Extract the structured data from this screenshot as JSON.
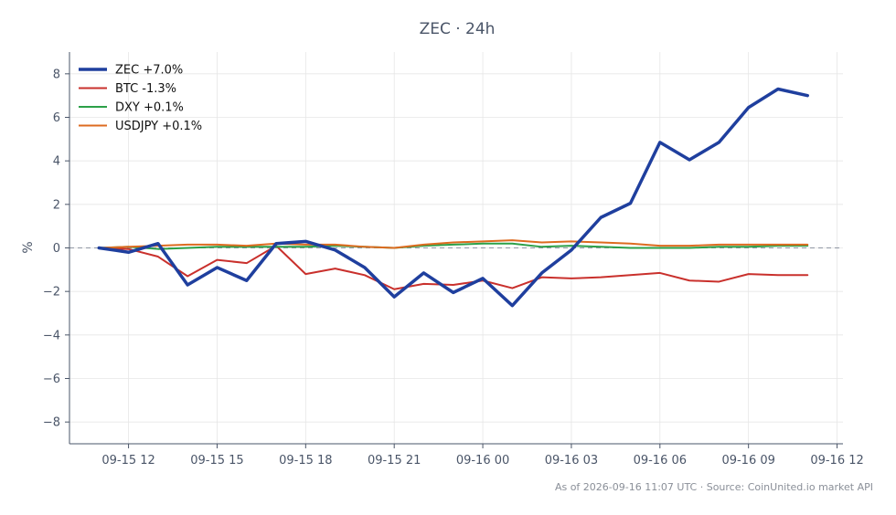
{
  "chart_data": {
    "type": "line",
    "title": "ZEC · 24h",
    "xlabel": "",
    "ylabel": "%",
    "ylim": [
      -9,
      9
    ],
    "yticks": [
      -8,
      -6,
      -4,
      -2,
      0,
      2,
      4,
      6,
      8
    ],
    "ytick_labels": [
      "−8",
      "−6",
      "−4",
      "−2",
      "0",
      "2",
      "4",
      "6",
      "8"
    ],
    "x": [
      "09-15 11:00",
      "09-15 12:00",
      "09-15 13:00",
      "09-15 14:00",
      "09-15 15:00",
      "09-15 16:00",
      "09-15 17:00",
      "09-15 18:00",
      "09-15 19:00",
      "09-15 20:00",
      "09-15 21:00",
      "09-15 22:00",
      "09-15 23:00",
      "09-16 00:00",
      "09-16 01:00",
      "09-16 02:00",
      "09-16 03:00",
      "09-16 04:00",
      "09-16 05:00",
      "09-16 06:00",
      "09-16 07:00",
      "09-16 08:00",
      "09-16 09:00",
      "09-16 10:00",
      "09-16 11:00"
    ],
    "xlim": [
      "09-15 10:00",
      "09-16 12:12"
    ],
    "xticks": [
      {
        "at": "09-15 12:00",
        "label": "09-15 12"
      },
      {
        "at": "09-15 15:00",
        "label": "09-15 15"
      },
      {
        "at": "09-15 18:00",
        "label": "09-15 18"
      },
      {
        "at": "09-15 21:00",
        "label": "09-15 21"
      },
      {
        "at": "09-16 00:00",
        "label": "09-16 00"
      },
      {
        "at": "09-16 03:00",
        "label": "09-16 03"
      },
      {
        "at": "09-16 06:00",
        "label": "09-16 06"
      },
      {
        "at": "09-16 09:00",
        "label": "09-16 09"
      },
      {
        "at": "09-16 12:00",
        "label": "09-16 12"
      }
    ],
    "grid": true,
    "legend_position": "top-left",
    "reference_line": 0,
    "series": [
      {
        "name": "ZEC +7.0%",
        "color": "#1f3f9e",
        "values": [
          0.0,
          -0.2,
          0.2,
          -1.7,
          -0.9,
          -1.5,
          0.2,
          0.3,
          -0.1,
          -0.9,
          -2.25,
          -1.15,
          -2.05,
          -1.4,
          -2.65,
          -1.15,
          -0.1,
          1.4,
          2.05,
          4.85,
          4.05,
          4.85,
          6.45,
          7.3,
          7.0
        ]
      },
      {
        "name": "BTC -1.3%",
        "color": "#c9302c",
        "values": [
          0.0,
          -0.05,
          -0.4,
          -1.3,
          -0.55,
          -0.7,
          0.1,
          -1.2,
          -0.95,
          -1.25,
          -1.9,
          -1.65,
          -1.7,
          -1.5,
          -1.85,
          -1.35,
          -1.4,
          -1.35,
          -1.25,
          -1.15,
          -1.5,
          -1.55,
          -1.2,
          -1.25,
          -1.25
        ]
      },
      {
        "name": "DXY +0.1%",
        "color": "#2ca048",
        "values": [
          0.0,
          0.05,
          -0.05,
          0.0,
          0.05,
          0.05,
          0.05,
          0.05,
          0.1,
          0.05,
          0.0,
          0.1,
          0.15,
          0.2,
          0.2,
          0.05,
          0.1,
          0.05,
          0.0,
          0.0,
          0.0,
          0.05,
          0.05,
          0.1,
          0.1
        ]
      },
      {
        "name": "USDJPY +0.1%",
        "color": "#dd6b20",
        "values": [
          0.0,
          0.05,
          0.1,
          0.15,
          0.15,
          0.1,
          0.2,
          0.15,
          0.15,
          0.05,
          0.0,
          0.15,
          0.25,
          0.3,
          0.35,
          0.25,
          0.3,
          0.25,
          0.2,
          0.1,
          0.1,
          0.15,
          0.15,
          0.15,
          0.15
        ]
      }
    ]
  },
  "footer": "As of 2026-09-16 11:07 UTC · Source: CoinUnited.io market API"
}
